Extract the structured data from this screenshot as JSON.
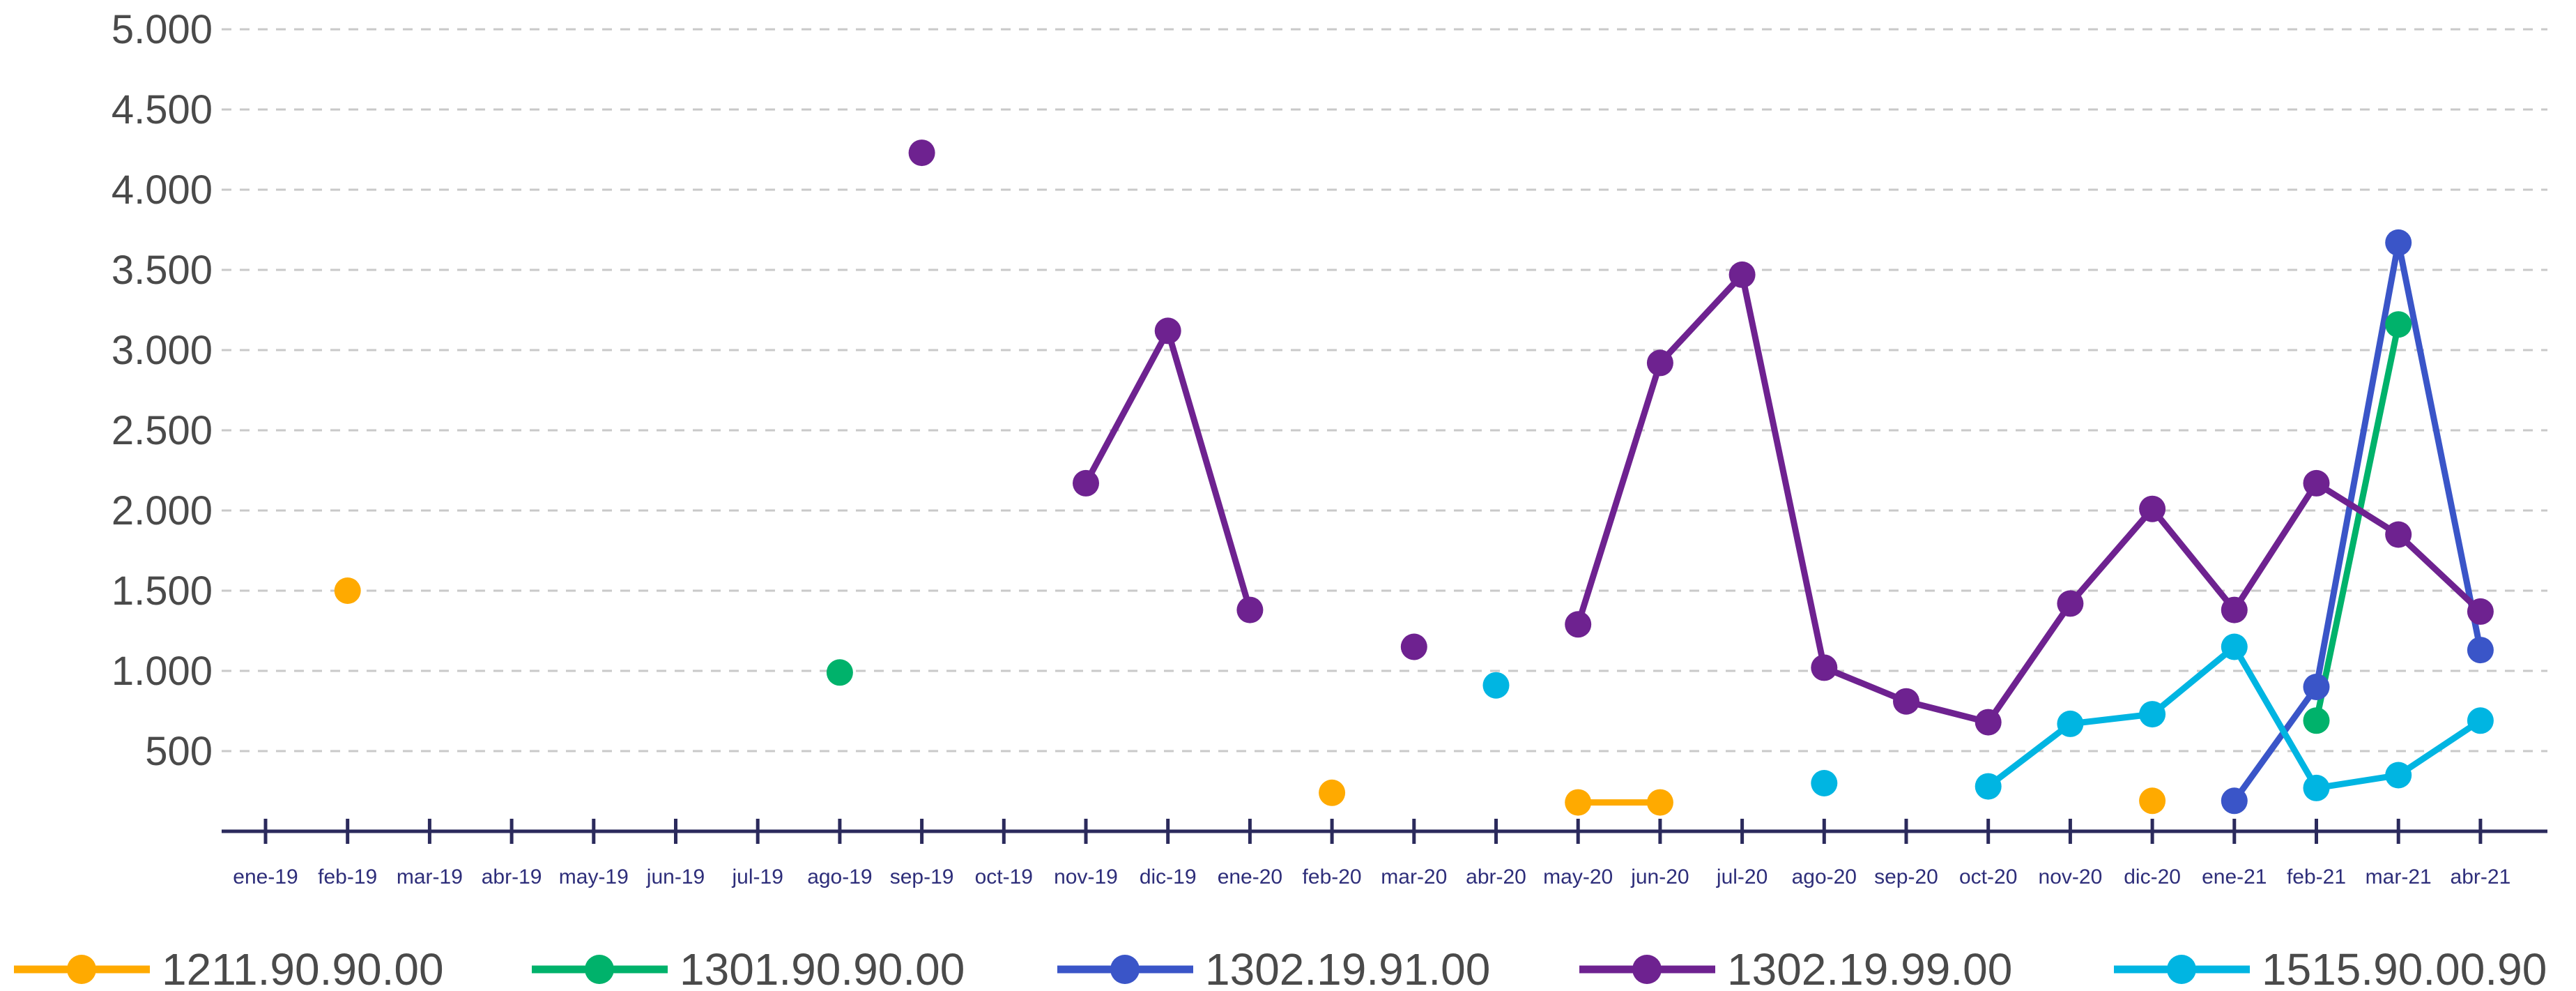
{
  "chart_data": {
    "type": "line",
    "title": "",
    "xlabel": "",
    "ylabel": "",
    "ylim": [
      0,
      5000
    ],
    "grid": true,
    "legend_position": "bottom",
    "y_ticks": [
      "500",
      "1.000",
      "1.500",
      "2.000",
      "2.500",
      "3.000",
      "3.500",
      "4.000",
      "4.500",
      "5.000"
    ],
    "y_tick_values": [
      500,
      1000,
      1500,
      2000,
      2500,
      3000,
      3500,
      4000,
      4500,
      5000
    ],
    "categories": [
      "ene-19",
      "feb-19",
      "mar-19",
      "abr-19",
      "may-19",
      "jun-19",
      "jul-19",
      "ago-19",
      "sep-19",
      "oct-19",
      "nov-19",
      "dic-19",
      "ene-20",
      "feb-20",
      "mar-20",
      "abr-20",
      "may-20",
      "jun-20",
      "jul-20",
      "ago-20",
      "sep-20",
      "oct-20",
      "nov-20",
      "dic-20",
      "ene-21",
      "feb-21",
      "mar-21",
      "abr-21"
    ],
    "series": [
      {
        "name": "1211.90.90.00",
        "color": "#FFAA00",
        "values": [
          null,
          1500,
          null,
          null,
          null,
          null,
          null,
          null,
          null,
          null,
          null,
          null,
          null,
          240,
          null,
          null,
          180,
          180,
          null,
          null,
          null,
          null,
          null,
          190,
          null,
          null,
          null,
          null
        ]
      },
      {
        "name": "1301.90.90.00",
        "color": "#00B26B",
        "values": [
          null,
          null,
          null,
          null,
          null,
          null,
          null,
          990,
          null,
          null,
          null,
          null,
          null,
          null,
          null,
          null,
          null,
          null,
          null,
          null,
          null,
          null,
          null,
          null,
          null,
          690,
          3160,
          null
        ]
      },
      {
        "name": "1302.19.91.00",
        "color": "#3A55C8",
        "values": [
          null,
          null,
          null,
          null,
          null,
          null,
          null,
          null,
          null,
          null,
          null,
          null,
          null,
          null,
          null,
          null,
          null,
          null,
          null,
          null,
          null,
          null,
          null,
          null,
          190,
          900,
          3670,
          1130
        ]
      },
      {
        "name": "1302.19.99.00",
        "color": "#6E2290",
        "values": [
          null,
          null,
          null,
          null,
          null,
          null,
          null,
          null,
          4230,
          null,
          2170,
          3120,
          1380,
          null,
          1150,
          null,
          1290,
          2920,
          3470,
          1020,
          810,
          680,
          1420,
          2010,
          1380,
          2170,
          1850,
          1370
        ]
      },
      {
        "name": "1515.90.00.90",
        "color": "#00B5E2",
        "values": [
          null,
          null,
          null,
          null,
          null,
          null,
          null,
          null,
          null,
          null,
          null,
          null,
          null,
          null,
          null,
          910,
          null,
          null,
          null,
          300,
          null,
          280,
          670,
          730,
          1150,
          270,
          350,
          690
        ]
      }
    ]
  }
}
